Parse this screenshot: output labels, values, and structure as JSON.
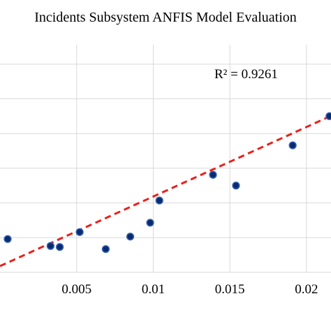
{
  "chart_data": {
    "type": "scatter",
    "title": "Incidents Subsystem ANFIS Model Evaluation",
    "xlabel": "",
    "ylabel": "",
    "x_tick_labels": [
      "0.005",
      "0.01",
      "0.015",
      "0.02"
    ],
    "x_ticks": [
      0.005,
      0.01,
      0.015,
      0.02
    ],
    "xlim": [
      0.0,
      0.0216
    ],
    "ylim": [
      0.0,
      0.066
    ],
    "y_gridlines": [
      0.01,
      0.02,
      0.03,
      0.04,
      0.05,
      0.06
    ],
    "grid": true,
    "series": [
      {
        "points": [
          {
            "x": 0.0005,
            "y": 0.0096
          },
          {
            "x": 0.0033,
            "y": 0.0076
          },
          {
            "x": 0.0039,
            "y": 0.0073
          },
          {
            "x": 0.0052,
            "y": 0.0116
          },
          {
            "x": 0.0069,
            "y": 0.0067
          },
          {
            "x": 0.0085,
            "y": 0.0103
          },
          {
            "x": 0.0098,
            "y": 0.0143
          },
          {
            "x": 0.0104,
            "y": 0.0207
          },
          {
            "x": 0.0139,
            "y": 0.0281
          },
          {
            "x": 0.0154,
            "y": 0.025
          },
          {
            "x": 0.0191,
            "y": 0.0366
          },
          {
            "x": 0.0215,
            "y": 0.045
          }
        ],
        "color": "#0b2a6e",
        "outline_color": "#2f5fb0"
      }
    ],
    "trendline": {
      "type": "linear",
      "color": "#e8211c",
      "style": "dashed",
      "intercept": 0.0018,
      "slope": 2.004,
      "r_squared_label": "R² = 0.9261"
    }
  }
}
